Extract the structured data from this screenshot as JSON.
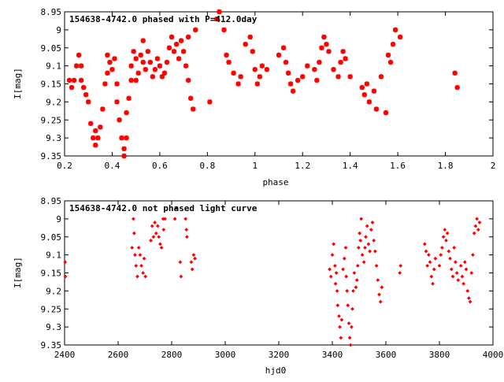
{
  "chart_data": [
    {
      "type": "scatter",
      "title": "154638-4742.0 phased with P=412.0day",
      "xlabel": "phase",
      "ylabel": "I[mag]",
      "xlim": [
        0.2,
        2.0
      ],
      "ylim": [
        8.95,
        9.35
      ],
      "y_inverted": true,
      "grid": false,
      "marker_color": "#ff0000",
      "marker": "asterisk",
      "x_ticks": [
        0.2,
        0.4,
        0.6,
        0.8,
        1.0,
        1.2,
        1.4,
        1.6,
        1.8,
        2.0
      ],
      "x_tick_labels": [
        "0.2",
        "0.4",
        "0.6",
        "0.8",
        "1",
        "1.2",
        "1.4",
        "1.6",
        "1.8",
        "2"
      ],
      "y_ticks": [
        8.95,
        9.0,
        9.05,
        9.1,
        9.15,
        9.2,
        9.25,
        9.3,
        9.35
      ],
      "y_tick_labels": [
        "8.95",
        "9",
        "9.05",
        "9.1",
        "9.15",
        "9.2",
        "9.25",
        "9.3",
        "9.35"
      ],
      "points": [
        [
          0.22,
          9.14
        ],
        [
          0.23,
          9.16
        ],
        [
          0.24,
          9.14
        ],
        [
          0.25,
          9.1
        ],
        [
          0.26,
          9.07
        ],
        [
          0.27,
          9.1
        ],
        [
          0.27,
          9.14
        ],
        [
          0.28,
          9.16
        ],
        [
          0.29,
          9.18
        ],
        [
          0.3,
          9.2
        ],
        [
          0.31,
          9.26
        ],
        [
          0.32,
          9.3
        ],
        [
          0.33,
          9.32
        ],
        [
          0.33,
          9.28
        ],
        [
          0.34,
          9.3
        ],
        [
          0.35,
          9.27
        ],
        [
          0.36,
          9.22
        ],
        [
          0.37,
          9.15
        ],
        [
          0.38,
          9.12
        ],
        [
          0.38,
          9.07
        ],
        [
          0.39,
          9.09
        ],
        [
          0.4,
          9.11
        ],
        [
          0.41,
          9.08
        ],
        [
          0.42,
          9.15
        ],
        [
          0.42,
          9.2
        ],
        [
          0.43,
          9.25
        ],
        [
          0.44,
          9.3
        ],
        [
          0.45,
          9.33
        ],
        [
          0.45,
          9.35
        ],
        [
          0.46,
          9.3
        ],
        [
          0.46,
          9.23
        ],
        [
          0.47,
          9.19
        ],
        [
          0.48,
          9.14
        ],
        [
          0.48,
          9.1
        ],
        [
          0.49,
          9.06
        ],
        [
          0.5,
          9.08
        ],
        [
          0.5,
          9.14
        ],
        [
          0.51,
          9.12
        ],
        [
          0.52,
          9.07
        ],
        [
          0.53,
          9.03
        ],
        [
          0.53,
          9.09
        ],
        [
          0.54,
          9.11
        ],
        [
          0.55,
          9.06
        ],
        [
          0.56,
          9.09
        ],
        [
          0.57,
          9.13
        ],
        [
          0.58,
          9.11
        ],
        [
          0.59,
          9.08
        ],
        [
          0.6,
          9.1
        ],
        [
          0.61,
          9.13
        ],
        [
          0.62,
          9.12
        ],
        [
          0.63,
          9.09
        ],
        [
          0.64,
          9.05
        ],
        [
          0.65,
          9.02
        ],
        [
          0.66,
          9.06
        ],
        [
          0.67,
          9.04
        ],
        [
          0.68,
          9.08
        ],
        [
          0.69,
          9.03
        ],
        [
          0.7,
          9.06
        ],
        [
          0.71,
          9.1
        ],
        [
          0.72,
          9.14
        ],
        [
          0.73,
          9.19
        ],
        [
          0.74,
          9.22
        ],
        [
          0.72,
          9.02
        ],
        [
          0.75,
          9.0
        ],
        [
          0.81,
          9.2
        ],
        [
          0.84,
          8.97
        ],
        [
          0.85,
          8.95
        ],
        [
          0.87,
          9.0
        ],
        [
          0.88,
          9.07
        ],
        [
          0.89,
          9.09
        ],
        [
          0.91,
          9.12
        ],
        [
          0.93,
          9.15
        ],
        [
          0.94,
          9.13
        ],
        [
          0.96,
          9.04
        ],
        [
          0.98,
          9.02
        ],
        [
          0.99,
          9.06
        ],
        [
          1.0,
          9.11
        ],
        [
          1.01,
          9.15
        ],
        [
          1.02,
          9.13
        ],
        [
          1.03,
          9.1
        ],
        [
          1.05,
          9.11
        ],
        [
          1.1,
          9.07
        ],
        [
          1.12,
          9.05
        ],
        [
          1.13,
          9.09
        ],
        [
          1.14,
          9.12
        ],
        [
          1.15,
          9.15
        ],
        [
          1.16,
          9.17
        ],
        [
          1.18,
          9.14
        ],
        [
          1.2,
          9.13
        ],
        [
          1.22,
          9.1
        ],
        [
          1.25,
          9.11
        ],
        [
          1.26,
          9.14
        ],
        [
          1.27,
          9.09
        ],
        [
          1.28,
          9.05
        ],
        [
          1.29,
          9.02
        ],
        [
          1.3,
          9.04
        ],
        [
          1.31,
          9.06
        ],
        [
          1.33,
          9.11
        ],
        [
          1.35,
          9.13
        ],
        [
          1.36,
          9.09
        ],
        [
          1.37,
          9.06
        ],
        [
          1.38,
          9.08
        ],
        [
          1.4,
          9.13
        ],
        [
          1.45,
          9.16
        ],
        [
          1.46,
          9.18
        ],
        [
          1.47,
          9.15
        ],
        [
          1.48,
          9.2
        ],
        [
          1.5,
          9.17
        ],
        [
          1.51,
          9.22
        ],
        [
          1.53,
          9.13
        ],
        [
          1.55,
          9.23
        ],
        [
          1.56,
          9.07
        ],
        [
          1.57,
          9.09
        ],
        [
          1.58,
          9.04
        ],
        [
          1.59,
          9.0
        ],
        [
          1.61,
          9.02
        ],
        [
          1.84,
          9.12
        ],
        [
          1.85,
          9.16
        ]
      ]
    },
    {
      "type": "scatter",
      "title": "154638-4742.0 not phased light curve",
      "xlabel": "hjd0",
      "ylabel": "I[mag]",
      "xlim": [
        2400,
        4000
      ],
      "ylim": [
        8.95,
        9.35
      ],
      "y_inverted": true,
      "grid": false,
      "marker_color": "#ff0000",
      "marker": "diamond",
      "x_ticks": [
        2400,
        2600,
        2800,
        3000,
        3200,
        3400,
        3600,
        3800,
        4000
      ],
      "x_tick_labels": [
        "2400",
        "2600",
        "2800",
        "3000",
        "3200",
        "3400",
        "3600",
        "3800",
        "4000"
      ],
      "y_ticks": [
        8.95,
        9.0,
        9.05,
        9.1,
        9.15,
        9.2,
        9.25,
        9.3,
        9.35
      ],
      "y_tick_labels": [
        "8.95",
        "9",
        "9.05",
        "9.1",
        "9.15",
        "9.2",
        "9.25",
        "9.3",
        "9.35"
      ],
      "points": [
        [
          2402,
          9.12
        ],
        [
          2403,
          9.16
        ],
        [
          2652,
          9.08
        ],
        [
          2657,
          9.0
        ],
        [
          2660,
          9.04
        ],
        [
          2663,
          9.1
        ],
        [
          2667,
          9.13
        ],
        [
          2672,
          9.16
        ],
        [
          2677,
          9.08
        ],
        [
          2682,
          9.1
        ],
        [
          2687,
          9.13
        ],
        [
          2693,
          9.15
        ],
        [
          2697,
          9.11
        ],
        [
          2702,
          9.16
        ],
        [
          2722,
          9.06
        ],
        [
          2727,
          9.02
        ],
        [
          2732,
          9.05
        ],
        [
          2737,
          9.01
        ],
        [
          2742,
          9.04
        ],
        [
          2748,
          9.02
        ],
        [
          2752,
          9.05
        ],
        [
          2757,
          9.07
        ],
        [
          2762,
          9.08
        ],
        [
          2768,
          9.0
        ],
        [
          2770,
          9.03
        ],
        [
          2775,
          9.0
        ],
        [
          2812,
          9.0
        ],
        [
          2817,
          8.97
        ],
        [
          2832,
          9.12
        ],
        [
          2835,
          9.16
        ],
        [
          2852,
          9.0
        ],
        [
          2855,
          9.03
        ],
        [
          2857,
          9.05
        ],
        [
          2873,
          9.12
        ],
        [
          2877,
          9.14
        ],
        [
          2882,
          9.1
        ],
        [
          2887,
          9.11
        ],
        [
          3390,
          9.14
        ],
        [
          3395,
          9.16
        ],
        [
          3400,
          9.1
        ],
        [
          3405,
          9.07
        ],
        [
          3410,
          9.13
        ],
        [
          3412,
          9.18
        ],
        [
          3415,
          9.15
        ],
        [
          3418,
          9.2
        ],
        [
          3420,
          9.24
        ],
        [
          3425,
          9.27
        ],
        [
          3428,
          9.3
        ],
        [
          3432,
          9.33
        ],
        [
          3435,
          9.28
        ],
        [
          3440,
          9.14
        ],
        [
          3445,
          9.11
        ],
        [
          3450,
          9.08
        ],
        [
          3452,
          9.16
        ],
        [
          3455,
          9.2
        ],
        [
          3458,
          9.24
        ],
        [
          3462,
          9.29
        ],
        [
          3465,
          9.33
        ],
        [
          3468,
          9.35
        ],
        [
          3472,
          9.3
        ],
        [
          3475,
          9.25
        ],
        [
          3478,
          9.2
        ],
        [
          3482,
          9.15
        ],
        [
          3488,
          9.19
        ],
        [
          3492,
          9.17
        ],
        [
          3495,
          9.13
        ],
        [
          3498,
          9.08
        ],
        [
          3502,
          9.04
        ],
        [
          3505,
          9.06
        ],
        [
          3508,
          9.0
        ],
        [
          3512,
          9.1
        ],
        [
          3518,
          9.12
        ],
        [
          3522,
          9.08
        ],
        [
          3525,
          9.05
        ],
        [
          3530,
          9.02
        ],
        [
          3535,
          9.07
        ],
        [
          3540,
          9.09
        ],
        [
          3545,
          9.03
        ],
        [
          3550,
          9.01
        ],
        [
          3555,
          9.06
        ],
        [
          3560,
          9.09
        ],
        [
          3565,
          9.13
        ],
        [
          3570,
          9.17
        ],
        [
          3575,
          9.21
        ],
        [
          3580,
          9.23
        ],
        [
          3585,
          9.19
        ],
        [
          3652,
          9.15
        ],
        [
          3655,
          9.13
        ],
        [
          3745,
          9.07
        ],
        [
          3750,
          9.09
        ],
        [
          3755,
          9.13
        ],
        [
          3760,
          9.1
        ],
        [
          3765,
          9.12
        ],
        [
          3770,
          9.16
        ],
        [
          3775,
          9.18
        ],
        [
          3780,
          9.14
        ],
        [
          3785,
          9.11
        ],
        [
          3800,
          9.13
        ],
        [
          3805,
          9.1
        ],
        [
          3810,
          9.08
        ],
        [
          3815,
          9.05
        ],
        [
          3820,
          9.03
        ],
        [
          3825,
          9.06
        ],
        [
          3830,
          9.04
        ],
        [
          3835,
          9.09
        ],
        [
          3840,
          9.11
        ],
        [
          3845,
          9.14
        ],
        [
          3850,
          9.16
        ],
        [
          3855,
          9.08
        ],
        [
          3860,
          9.12
        ],
        [
          3865,
          9.15
        ],
        [
          3870,
          9.17
        ],
        [
          3880,
          9.13
        ],
        [
          3885,
          9.16
        ],
        [
          3890,
          9.18
        ],
        [
          3895,
          9.12
        ],
        [
          3900,
          9.14
        ],
        [
          3905,
          9.2
        ],
        [
          3910,
          9.22
        ],
        [
          3915,
          9.23
        ],
        [
          3920,
          9.15
        ],
        [
          3925,
          9.1
        ],
        [
          3930,
          9.04
        ],
        [
          3935,
          9.02
        ],
        [
          3940,
          9.0
        ],
        [
          3945,
          9.03
        ],
        [
          3950,
          9.01
        ]
      ]
    }
  ]
}
